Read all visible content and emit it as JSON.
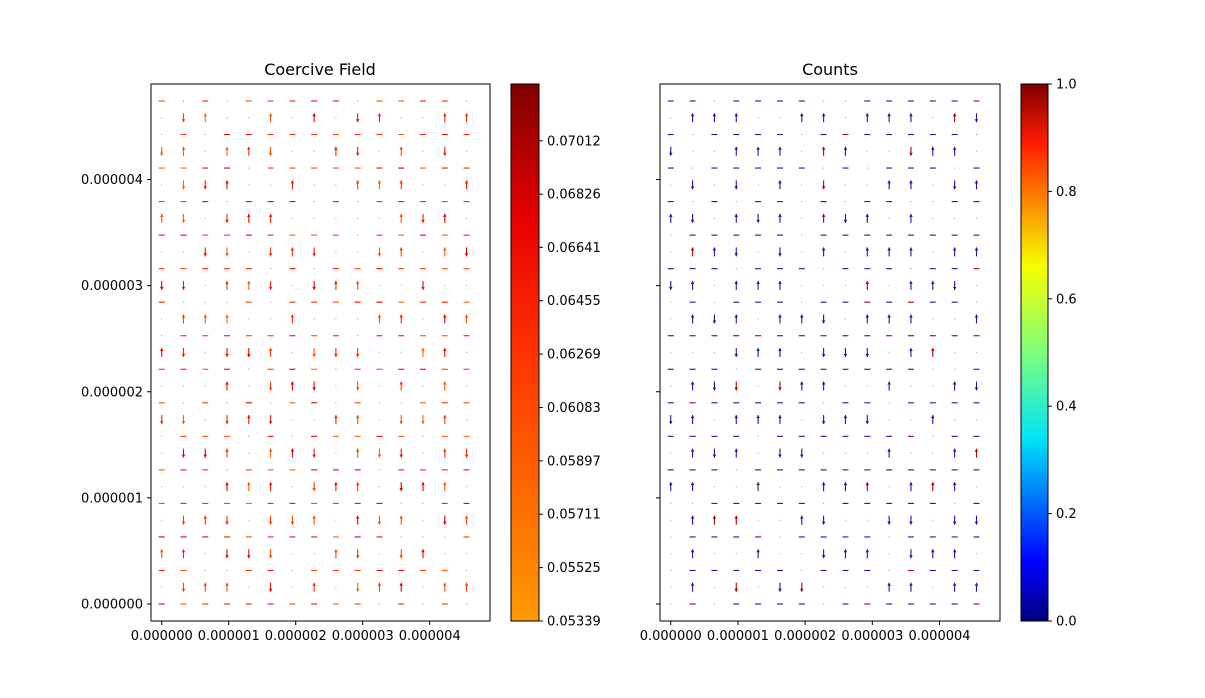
{
  "chart_data": [
    {
      "type": "quiver",
      "title": "Coercive Field",
      "xlim": [
        -1.6e-07,
        4.9e-06
      ],
      "ylim": [
        -1.6e-07,
        4.9e-06
      ],
      "x_ticks": [
        "0.000000",
        "0.000001",
        "0.000002",
        "0.000003",
        "0.000004"
      ],
      "x_tick_values": [
        0,
        1e-06,
        2e-06,
        3e-06,
        4e-06
      ],
      "y_ticks": [
        "0.000000",
        "0.000001",
        "0.000002",
        "0.000003",
        "0.000004"
      ],
      "y_tick_values": [
        0,
        1e-06,
        2e-06,
        3e-06,
        4e-06
      ],
      "grid": {
        "nx": 15,
        "ny": 31,
        "x0": 0,
        "dx": 3.25e-07,
        "y0": 0,
        "dy": 1.58e-07
      },
      "colormap": "autumn_r-to-darkred",
      "colorbar": {
        "range": [
          0.05339,
          0.0721
        ],
        "tick_labels": [
          "0.05339",
          "0.05525",
          "0.05711",
          "0.05897",
          "0.06083",
          "0.06269",
          "0.06455",
          "0.06641",
          "0.06826",
          "0.07012"
        ],
        "tick_values": [
          0.05339,
          0.05525,
          0.05711,
          0.05897,
          0.06083,
          0.06269,
          0.06455,
          0.06641,
          0.06826,
          0.07012
        ]
      }
    },
    {
      "type": "quiver",
      "title": "Counts",
      "xlim": [
        -1.6e-07,
        4.9e-06
      ],
      "ylim": [
        -1.6e-07,
        4.9e-06
      ],
      "x_ticks": [
        "0.000000",
        "0.000001",
        "0.000002",
        "0.000003",
        "0.000004"
      ],
      "x_tick_values": [
        0,
        1e-06,
        2e-06,
        3e-06,
        4e-06
      ],
      "y_ticks": [
        "",
        "",
        "",
        "",
        ""
      ],
      "y_tick_values": [
        0,
        1e-06,
        2e-06,
        3e-06,
        4e-06
      ],
      "grid": {
        "nx": 15,
        "ny": 31,
        "x0": 0,
        "dx": 3.25e-07,
        "y0": 0,
        "dy": 1.58e-07
      },
      "colormap": "jet",
      "colorbar": {
        "range": [
          0,
          1
        ],
        "tick_labels": [
          "0.0",
          "0.2",
          "0.4",
          "0.6",
          "0.8",
          "1.0"
        ],
        "tick_values": [
          0,
          0.2,
          0.4,
          0.6,
          0.8,
          1.0
        ]
      }
    }
  ]
}
